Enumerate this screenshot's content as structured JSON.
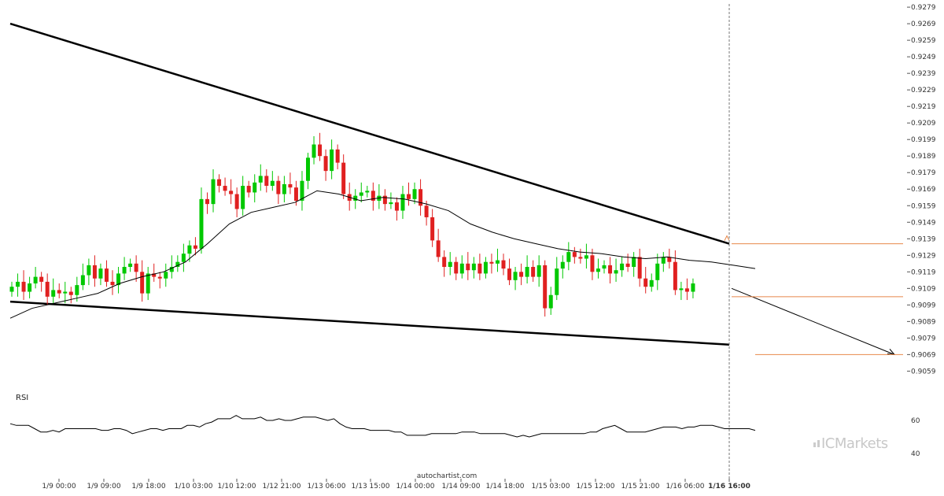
{
  "chart_data": {
    "type": "candlestick",
    "title": "",
    "price_axis": {
      "ticks": [
        "0.9279",
        "0.9269",
        "0.9259",
        "0.9249",
        "0.9239",
        "0.9229",
        "0.9219",
        "0.9209",
        "0.9199",
        "0.9189",
        "0.9179",
        "0.9169",
        "0.9159",
        "0.9149",
        "0.9139",
        "0.9129",
        "0.9119",
        "0.9109",
        "0.9099",
        "0.9089",
        "0.9079",
        "0.9069",
        "0.9059"
      ],
      "range": [
        0.9053,
        0.928
      ]
    },
    "time_axis": {
      "ticks": [
        "1/9 00:00",
        "1/9 09:00",
        "1/9 18:00",
        "1/10 03:00",
        "1/10 12:00",
        "1/12 21:00",
        "1/13 06:00",
        "1/13 15:00",
        "1/14 00:00",
        "1/14 09:00",
        "1/14 18:00",
        "1/15 03:00",
        "1/15 12:00",
        "1/15 21:00",
        "1/16 06:00",
        "1/16 16:00"
      ],
      "highlighted": "1/16 16:00"
    },
    "close_series": [
      0.911,
      0.9113,
      0.9107,
      0.9112,
      0.9116,
      0.9113,
      0.9104,
      0.9108,
      0.9106,
      0.9107,
      0.9105,
      0.9111,
      0.9117,
      0.9123,
      0.9115,
      0.9121,
      0.9113,
      0.9111,
      0.9118,
      0.9122,
      0.9124,
      0.9119,
      0.9106,
      0.9118,
      0.9116,
      0.9115,
      0.9119,
      0.9122,
      0.9125,
      0.913,
      0.9135,
      0.9133,
      0.9163,
      0.916,
      0.9175,
      0.9171,
      0.9168,
      0.9166,
      0.9157,
      0.9171,
      0.9167,
      0.9173,
      0.9177,
      0.9171,
      0.9174,
      0.9166,
      0.9172,
      0.917,
      0.9162,
      0.9174,
      0.9188,
      0.9196,
      0.9189,
      0.918,
      0.9193,
      0.9185,
      0.9166,
      0.9162,
      0.9165,
      0.9167,
      0.9168,
      0.9162,
      0.9165,
      0.916,
      0.9161,
      0.9156,
      0.9166,
      0.9163,
      0.9169,
      0.9159,
      0.9152,
      0.9138,
      0.9128,
      0.9122,
      0.9125,
      0.9118,
      0.9124,
      0.912,
      0.9124,
      0.9118,
      0.9125,
      0.9124,
      0.9126,
      0.9121,
      0.9114,
      0.9119,
      0.9116,
      0.9122,
      0.9116,
      0.9123,
      0.9097,
      0.9105,
      0.9121,
      0.9125,
      0.9131,
      0.9128,
      0.9127,
      0.9129,
      0.9119,
      0.9121,
      0.9123,
      0.9118,
      0.912,
      0.9124,
      0.9122,
      0.9128,
      0.9115,
      0.911,
      0.9114,
      0.9124,
      0.9128,
      0.9125,
      0.9108,
      0.9109,
      0.9107,
      0.9112
    ],
    "moving_average": [
      0.9091,
      0.9097,
      0.91,
      0.9103,
      0.9106,
      0.9112,
      0.9116,
      0.9119,
      0.9125,
      0.9136,
      0.9148,
      0.9155,
      0.9158,
      0.9161,
      0.9168,
      0.9166,
      0.9162,
      0.9164,
      0.9163,
      0.916,
      0.9156,
      0.9148,
      0.9143,
      0.9139,
      0.9136,
      0.9133,
      0.9131,
      0.913,
      0.9128,
      0.9127,
      0.9128,
      0.9126,
      0.9125,
      0.9123,
      0.9121
    ],
    "pattern": {
      "name": "Falling Wedge",
      "upper_line": [
        [
          0,
          0.9269
        ],
        [
          120,
          0.9136
        ]
      ],
      "lower_line": [
        [
          0,
          0.9101
        ],
        [
          120,
          0.9075
        ]
      ],
      "projection": {
        "from": 0.9109,
        "to": 0.9069
      }
    },
    "levels": [
      0.9136,
      0.9104,
      0.9069
    ],
    "rsi": {
      "label": "RSI",
      "ticks": [
        "60",
        "40"
      ],
      "values": [
        58,
        57,
        57,
        57,
        55,
        53,
        53,
        54,
        53,
        55,
        55,
        55,
        55,
        55,
        55,
        54,
        54,
        55,
        55,
        54,
        52,
        53,
        54,
        55,
        55,
        54,
        55,
        55,
        55,
        57,
        57,
        56,
        58,
        59,
        61,
        61,
        61,
        63,
        61,
        61,
        61,
        62,
        60,
        60,
        61,
        60,
        60,
        61,
        62,
        62,
        62,
        61,
        60,
        61,
        58,
        56,
        55,
        55,
        55,
        54,
        54,
        54,
        54,
        53,
        53,
        51,
        51,
        51,
        51,
        52,
        52,
        52,
        52,
        52,
        53,
        53,
        53,
        52,
        52,
        52,
        52,
        52,
        51,
        50,
        51,
        50,
        51,
        52,
        52,
        52,
        52,
        52,
        52,
        52,
        52,
        53,
        53,
        55,
        56,
        57,
        55,
        53,
        53,
        53,
        53,
        54,
        55,
        56,
        56,
        56,
        55,
        56,
        56,
        57,
        57,
        57,
        56,
        55,
        55,
        55,
        55,
        55,
        54
      ]
    },
    "grid": false,
    "watermark": "autochartist.com",
    "brand": "ICMarkets",
    "colors": {
      "bull": "#00c800",
      "bear": "#e02020",
      "trend": "#000000",
      "level": "#e8884a"
    }
  }
}
